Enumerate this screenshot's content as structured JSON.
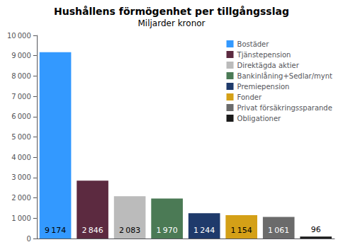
{
  "chart_data": {
    "type": "bar",
    "title": "Hushållens förmögenhet per tillgångsslag",
    "subtitle": "Miljarder kronor",
    "categories": [
      "Bostäder",
      "Tjänstepension",
      "Direktägda aktier",
      "Bankinlåning+Sedlar/mynt",
      "Premiepension",
      "Fonder",
      "Privat försäkringssparande",
      "Obligationer"
    ],
    "values": [
      9174,
      2846,
      2083,
      1970,
      1244,
      1154,
      1061,
      96
    ],
    "value_labels": [
      "9 174",
      "2 846",
      "2 083",
      "1 970",
      "1 244",
      "1 154",
      "1 061",
      "96"
    ],
    "colors": [
      "#3399FF",
      "#5C2A40",
      "#BBBBBB",
      "#4B7A55",
      "#1F3A6B",
      "#D4A017",
      "#6B6B6B",
      "#1A1A1A"
    ],
    "ylim": [
      0,
      10000
    ],
    "yticks": [
      0,
      {
        "value": 1000,
        "label": "1 000"
      },
      {
        "value": 2000,
        "label": "2 000"
      },
      {
        "value": 3000,
        "label": "3 000"
      },
      {
        "value": 4000,
        "label": "4 000"
      },
      {
        "value": 5000,
        "label": "5 000"
      },
      {
        "value": 6000,
        "label": "6 000"
      },
      {
        "value": 7000,
        "label": "7 000"
      },
      {
        "value": 8000,
        "label": "8 000"
      },
      {
        "value": 9000,
        "label": "9 000"
      },
      {
        "value": 10000,
        "label": "10 000"
      }
    ],
    "grid": false,
    "legend": "upper right",
    "data_labels": true,
    "tick_labels": "y"
  }
}
